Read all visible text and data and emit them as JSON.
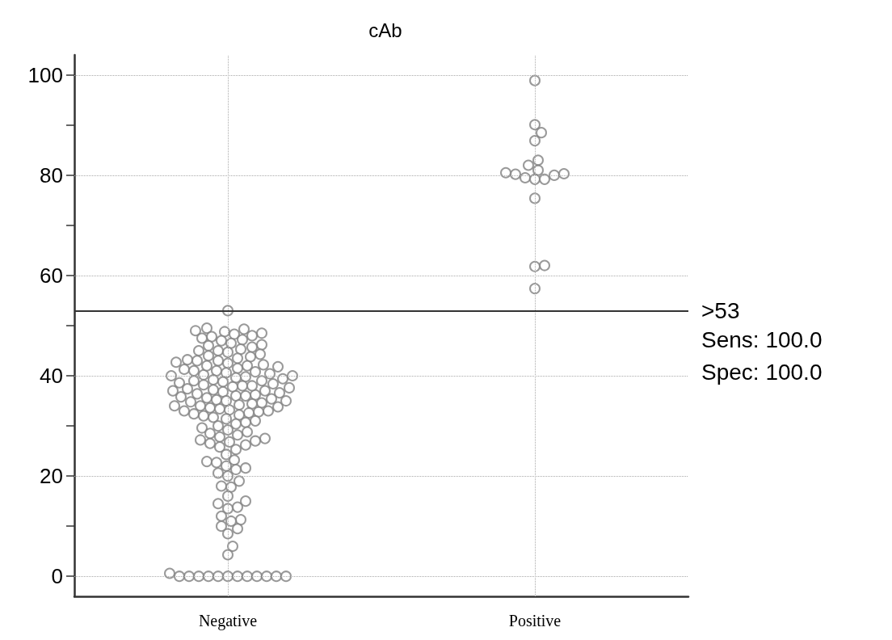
{
  "chart_data": {
    "type": "scatter",
    "title": "cAb",
    "categories": [
      "Negative",
      "Positive"
    ],
    "series": [
      {
        "color": "#808080",
        "x": [
          "Negative",
          "Negative",
          "Negative",
          "Negative",
          "Negative",
          "Negative",
          "Negative",
          "Negative",
          "Negative",
          "Negative",
          "Negative",
          "Negative",
          "Negative",
          "Negative",
          "Negative",
          "Negative",
          "Negative",
          "Negative",
          "Negative",
          "Negative",
          "Negative",
          "Negative",
          "Negative",
          "Negative",
          "Negative",
          "Negative",
          "Negative",
          "Negative",
          "Negative",
          "Negative",
          "Negative",
          "Negative",
          "Negative",
          "Negative",
          "Negative",
          "Negative",
          "Negative",
          "Negative",
          "Negative",
          "Negative",
          "Negative",
          "Negative",
          "Negative",
          "Negative",
          "Negative",
          "Negative",
          "Negative",
          "Negative",
          "Negative",
          "Negative",
          "Negative",
          "Negative",
          "Negative",
          "Negative",
          "Negative",
          "Negative",
          "Negative",
          "Negative",
          "Negative",
          "Negative",
          "Negative",
          "Negative",
          "Negative",
          "Negative",
          "Negative",
          "Negative",
          "Negative",
          "Negative",
          "Negative",
          "Negative",
          "Negative",
          "Negative",
          "Negative",
          "Negative",
          "Negative",
          "Negative",
          "Negative",
          "Negative",
          "Negative",
          "Negative",
          "Negative",
          "Negative",
          "Negative",
          "Negative",
          "Negative",
          "Negative",
          "Negative",
          "Negative",
          "Negative",
          "Negative",
          "Negative",
          "Negative",
          "Negative",
          "Negative",
          "Negative",
          "Negative",
          "Negative",
          "Negative",
          "Negative",
          "Negative",
          "Negative",
          "Negative",
          "Negative",
          "Negative",
          "Negative",
          "Negative",
          "Negative",
          "Negative",
          "Negative",
          "Negative",
          "Negative",
          "Negative",
          "Negative",
          "Negative",
          "Negative",
          "Negative",
          "Negative",
          "Negative",
          "Negative",
          "Negative",
          "Negative",
          "Negative",
          "Negative",
          "Negative",
          "Negative",
          "Negative",
          "Negative",
          "Negative",
          "Negative",
          "Negative",
          "Negative",
          "Negative",
          "Negative",
          "Negative",
          "Negative",
          "Negative",
          "Negative",
          "Negative",
          "Negative",
          "Negative",
          "Negative",
          "Negative",
          "Negative",
          "Negative",
          "Negative",
          "Negative",
          "Negative",
          "Negative"
        ],
        "values": [
          53.0,
          49.5,
          49.3,
          49.0,
          48.8,
          48.5,
          48.3,
          48.0,
          47.8,
          47.5,
          47.2,
          47.0,
          46.5,
          46.2,
          46.0,
          45.7,
          45.3,
          45.0,
          44.7,
          44.3,
          44.0,
          43.8,
          43.5,
          43.2,
          43.0,
          42.7,
          42.5,
          42.2,
          42.0,
          41.8,
          41.5,
          41.3,
          41.0,
          40.8,
          40.6,
          40.4,
          40.2,
          40.0,
          39.8,
          39.6,
          39.4,
          39.2,
          39.0,
          38.8,
          38.6,
          38.4,
          38.2,
          38.0,
          37.8,
          37.6,
          37.4,
          37.2,
          37.0,
          36.8,
          36.6,
          36.4,
          36.2,
          36.0,
          35.8,
          35.6,
          35.4,
          35.2,
          35.0,
          34.8,
          34.6,
          34.4,
          34.2,
          34.0,
          33.8,
          33.6,
          33.4,
          33.2,
          33.0,
          32.8,
          32.6,
          32.4,
          32.2,
          32.0,
          31.7,
          31.4,
          31.0,
          30.7,
          30.4,
          30.0,
          29.6,
          29.2,
          28.8,
          28.5,
          28.2,
          27.8,
          27.5,
          27.2,
          27.0,
          26.8,
          26.5,
          26.2,
          45.0,
          42.0,
          40.0,
          38.0,
          36.0,
          35.0,
          34.0,
          33.0,
          37.0,
          39.0,
          41.0,
          43.0,
          25.8,
          25.3,
          24.3,
          23.2,
          22.9,
          22.7,
          22.0,
          21.6,
          21.3,
          20.6,
          20.0,
          19.0,
          18.0,
          17.8,
          16.0,
          15.0,
          14.5,
          13.8,
          13.5,
          12.0,
          11.3,
          11.0,
          10.0,
          9.5,
          8.5,
          6.0,
          4.3,
          0.6,
          0,
          0,
          0,
          0,
          0,
          0,
          0,
          0,
          0,
          0,
          0,
          0
        ]
      },
      {
        "color": "#808080",
        "x": [
          "Positive",
          "Positive",
          "Positive",
          "Positive",
          "Positive",
          "Positive",
          "Positive",
          "Positive",
          "Positive",
          "Positive",
          "Positive",
          "Positive",
          "Positive",
          "Positive",
          "Positive",
          "Positive",
          "Positive",
          "Positive"
        ],
        "values": [
          98.9,
          90.1,
          88.5,
          86.9,
          83.0,
          82.0,
          81.0,
          80.2,
          79.5,
          79.2,
          79.2,
          80.0,
          80.3,
          80.5,
          75.4,
          62.0,
          61.8,
          57.4
        ]
      }
    ],
    "ylim": [
      -4,
      104
    ],
    "yticks": [
      0,
      {
        "value": 10,
        "label": null
      },
      20,
      {
        "value": 30,
        "label": null
      },
      40,
      {
        "value": 50,
        "label": null
      },
      60,
      {
        "value": 70,
        "label": null
      },
      80,
      {
        "value": 90,
        "label": null
      },
      100
    ],
    "grid": true,
    "marker": "circle",
    "ref_lines": [
      {
        "axis": "y",
        "value": 53,
        "label": ">53",
        "color": "#333333"
      }
    ],
    "annotations": [
      "Sens: 100.0",
      "Spec: 100.0"
    ]
  }
}
